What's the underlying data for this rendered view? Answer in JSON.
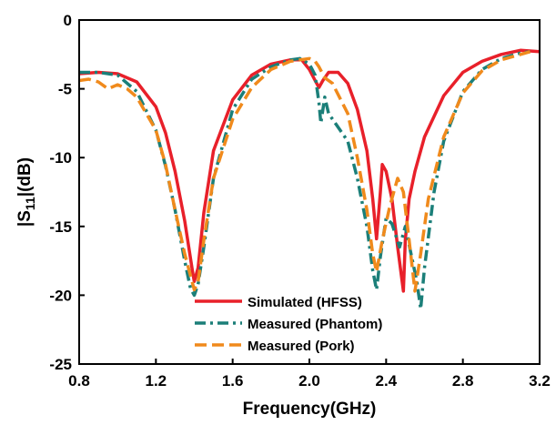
{
  "chart_data": {
    "type": "line",
    "title": "",
    "xlabel": "Frequency(GHz)",
    "ylabel_main": "|S",
    "ylabel_sub": "11",
    "ylabel_rest": "|(dB)",
    "xlim": [
      0.8,
      3.2
    ],
    "ylim": [
      -25,
      0
    ],
    "x_ticks": [
      "0.8",
      "1.2",
      "1.6",
      "2.0",
      "2.4",
      "2.8",
      "3.2"
    ],
    "y_ticks": [
      "0",
      "-5",
      "-10",
      "-15",
      "-20",
      "-25"
    ],
    "grid": false,
    "legend_position": "bottom-center",
    "series": [
      {
        "name": "Simulated (HFSS)",
        "color": "#e8202a",
        "dash": "solid",
        "points": [
          [
            0.8,
            -3.9
          ],
          [
            0.9,
            -3.8
          ],
          [
            1.0,
            -3.9
          ],
          [
            1.1,
            -4.5
          ],
          [
            1.2,
            -6.3
          ],
          [
            1.25,
            -8.2
          ],
          [
            1.3,
            -11.0
          ],
          [
            1.35,
            -14.6
          ],
          [
            1.39,
            -18.2
          ],
          [
            1.4,
            -19.0
          ],
          [
            1.42,
            -18.0
          ],
          [
            1.45,
            -14.0
          ],
          [
            1.5,
            -9.5
          ],
          [
            1.6,
            -5.8
          ],
          [
            1.7,
            -4.0
          ],
          [
            1.8,
            -3.2
          ],
          [
            1.9,
            -2.9
          ],
          [
            1.96,
            -2.9
          ],
          [
            2.0,
            -3.6
          ],
          [
            2.03,
            -4.4
          ],
          [
            2.05,
            -4.9
          ],
          [
            2.07,
            -4.4
          ],
          [
            2.1,
            -3.8
          ],
          [
            2.15,
            -3.8
          ],
          [
            2.2,
            -4.6
          ],
          [
            2.25,
            -6.5
          ],
          [
            2.3,
            -9.5
          ],
          [
            2.33,
            -13.0
          ],
          [
            2.35,
            -15.9
          ],
          [
            2.37,
            -12.5
          ],
          [
            2.38,
            -10.5
          ],
          [
            2.4,
            -11.0
          ],
          [
            2.43,
            -13.0
          ],
          [
            2.46,
            -16.5
          ],
          [
            2.49,
            -19.7
          ],
          [
            2.5,
            -16.0
          ],
          [
            2.52,
            -13.0
          ],
          [
            2.55,
            -11.0
          ],
          [
            2.6,
            -8.5
          ],
          [
            2.7,
            -5.5
          ],
          [
            2.8,
            -3.8
          ],
          [
            2.9,
            -3.0
          ],
          [
            3.0,
            -2.5
          ],
          [
            3.1,
            -2.2
          ],
          [
            3.2,
            -2.3
          ]
        ]
      },
      {
        "name": "Measured (Phantom)",
        "color": "#1b7f79",
        "dash": "dashdot",
        "points": [
          [
            0.8,
            -3.8
          ],
          [
            0.9,
            -3.8
          ],
          [
            1.0,
            -4.0
          ],
          [
            1.1,
            -5.2
          ],
          [
            1.2,
            -8.0
          ],
          [
            1.25,
            -10.6
          ],
          [
            1.3,
            -13.8
          ],
          [
            1.35,
            -17.5
          ],
          [
            1.38,
            -19.5
          ],
          [
            1.4,
            -20.0
          ],
          [
            1.42,
            -19.2
          ],
          [
            1.45,
            -16.5
          ],
          [
            1.5,
            -11.5
          ],
          [
            1.6,
            -6.5
          ],
          [
            1.7,
            -4.3
          ],
          [
            1.8,
            -3.4
          ],
          [
            1.9,
            -2.9
          ],
          [
            1.95,
            -2.8
          ],
          [
            2.0,
            -3.2
          ],
          [
            2.03,
            -4.0
          ],
          [
            2.05,
            -6.0
          ],
          [
            2.06,
            -7.5
          ],
          [
            2.08,
            -5.6
          ],
          [
            2.1,
            -6.8
          ],
          [
            2.2,
            -8.8
          ],
          [
            2.25,
            -11.5
          ],
          [
            2.3,
            -15.0
          ],
          [
            2.33,
            -18.2
          ],
          [
            2.35,
            -19.6
          ],
          [
            2.37,
            -17.2
          ],
          [
            2.4,
            -14.4
          ],
          [
            2.43,
            -14.8
          ],
          [
            2.47,
            -16.5
          ],
          [
            2.5,
            -15.0
          ],
          [
            2.53,
            -17.0
          ],
          [
            2.56,
            -19.0
          ],
          [
            2.58,
            -21.0
          ],
          [
            2.6,
            -18.0
          ],
          [
            2.65,
            -12.5
          ],
          [
            2.7,
            -8.8
          ],
          [
            2.8,
            -5.2
          ],
          [
            2.9,
            -3.6
          ],
          [
            3.0,
            -2.8
          ],
          [
            3.1,
            -2.4
          ],
          [
            3.15,
            -2.3
          ]
        ]
      },
      {
        "name": "Measured (Pork)",
        "color": "#f08a1c",
        "dash": "dash",
        "points": [
          [
            0.8,
            -4.4
          ],
          [
            0.85,
            -4.3
          ],
          [
            0.9,
            -4.5
          ],
          [
            0.95,
            -5.0
          ],
          [
            1.0,
            -4.7
          ],
          [
            1.05,
            -5.0
          ],
          [
            1.1,
            -5.6
          ],
          [
            1.2,
            -8.0
          ],
          [
            1.25,
            -10.5
          ],
          [
            1.3,
            -13.8
          ],
          [
            1.35,
            -17.0
          ],
          [
            1.4,
            -19.6
          ],
          [
            1.42,
            -19.0
          ],
          [
            1.45,
            -16.0
          ],
          [
            1.5,
            -11.5
          ],
          [
            1.6,
            -7.2
          ],
          [
            1.7,
            -4.9
          ],
          [
            1.8,
            -3.6
          ],
          [
            1.9,
            -3.0
          ],
          [
            2.0,
            -2.8
          ],
          [
            2.03,
            -3.0
          ],
          [
            2.05,
            -3.4
          ],
          [
            2.08,
            -4.2
          ],
          [
            2.12,
            -4.6
          ],
          [
            2.2,
            -6.8
          ],
          [
            2.25,
            -10.0
          ],
          [
            2.3,
            -13.8
          ],
          [
            2.33,
            -17.0
          ],
          [
            2.35,
            -18.3
          ],
          [
            2.38,
            -16.0
          ],
          [
            2.42,
            -13.5
          ],
          [
            2.46,
            -11.5
          ],
          [
            2.49,
            -12.5
          ],
          [
            2.52,
            -16.0
          ],
          [
            2.55,
            -19.7
          ],
          [
            2.58,
            -17.0
          ],
          [
            2.62,
            -13.0
          ],
          [
            2.7,
            -8.5
          ],
          [
            2.8,
            -5.3
          ],
          [
            2.9,
            -3.7
          ],
          [
            3.0,
            -2.9
          ],
          [
            3.1,
            -2.5
          ],
          [
            3.15,
            -2.3
          ]
        ]
      }
    ]
  }
}
